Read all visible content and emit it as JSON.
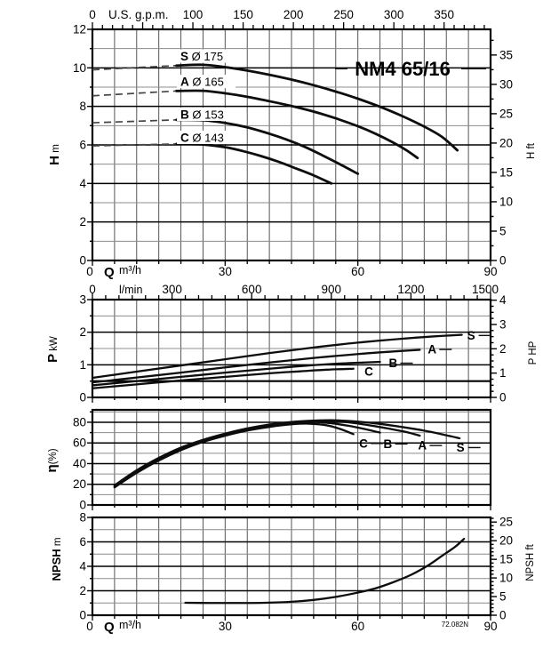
{
  "figure": {
    "title": "NM4 65/16",
    "note": "72.082N"
  },
  "chart_data": [
    {
      "id": "head_vs_flow",
      "type": "line",
      "title": "NM4 65/16",
      "x_top": {
        "label": "U.S. g.p.m.",
        "range": [
          0,
          396.26
        ],
        "labels": [
          0,
          100,
          150,
          200,
          250,
          300,
          350
        ],
        "minor_step": 10,
        "major_step": 50
      },
      "x_bottom": {
        "label": "Q",
        "unit": "m³/h",
        "range": [
          0,
          90
        ],
        "labels": [
          0,
          30,
          60,
          90
        ],
        "minor_step": 5
      },
      "y_left": {
        "label": "H",
        "unit": "m",
        "range": [
          0,
          12
        ],
        "labels": [
          0,
          2,
          4,
          6,
          8,
          10,
          12
        ],
        "minor_step": 1
      },
      "y_right": {
        "label": "H",
        "unit": "ft",
        "labels": [
          0,
          5,
          10,
          15,
          20,
          25,
          30,
          35
        ],
        "minor_step": 2.5,
        "units_per_left": 0.3048
      },
      "series": [
        {
          "name": "S",
          "impeller": "Ø 175",
          "label_box": {
            "q": 19.7,
            "v": 10.59
          },
          "dashed_lead": [
            [
              0,
              9.9
            ],
            [
              19,
              10.12
            ]
          ],
          "points": [
            [
              19,
              10.12
            ],
            [
              25,
              10.16
            ],
            [
              30,
              10.04
            ],
            [
              35,
              9.86
            ],
            [
              40,
              9.64
            ],
            [
              45,
              9.39
            ],
            [
              50,
              9.1
            ],
            [
              55,
              8.77
            ],
            [
              60,
              8.4
            ],
            [
              65,
              7.98
            ],
            [
              70,
              7.5
            ],
            [
              75,
              6.95
            ],
            [
              79,
              6.42
            ],
            [
              82.5,
              5.72
            ]
          ]
        },
        {
          "name": "A",
          "impeller": "Ø 165",
          "label_box": {
            "q": 19.7,
            "v": 9.27
          },
          "dashed_lead": [
            [
              0,
              8.55
            ],
            [
              19,
              8.8
            ]
          ],
          "points": [
            [
              19,
              8.8
            ],
            [
              25,
              8.81
            ],
            [
              30,
              8.68
            ],
            [
              35,
              8.5
            ],
            [
              40,
              8.27
            ],
            [
              45,
              8.02
            ],
            [
              50,
              7.73
            ],
            [
              55,
              7.38
            ],
            [
              60,
              6.97
            ],
            [
              64,
              6.58
            ],
            [
              68,
              6.12
            ],
            [
              71,
              5.72
            ],
            [
              73.5,
              5.32
            ]
          ]
        },
        {
          "name": "B",
          "impeller": "Ø 153",
          "label_box": {
            "q": 19.7,
            "v": 7.57
          },
          "dashed_lead": [
            [
              0,
              7.15
            ],
            [
              19,
              7.3
            ]
          ],
          "points": [
            [
              19,
              7.3
            ],
            [
              25,
              7.28
            ],
            [
              30,
              7.14
            ],
            [
              35,
              6.91
            ],
            [
              40,
              6.58
            ],
            [
              44,
              6.27
            ],
            [
              48,
              5.9
            ],
            [
              52,
              5.46
            ],
            [
              56,
              4.99
            ],
            [
              60,
              4.5
            ]
          ]
        },
        {
          "name": "C",
          "impeller": "Ø 143",
          "label_box": {
            "q": 19.7,
            "v": 6.37
          },
          "dashed_lead": [
            [
              0,
              5.95
            ],
            [
              19,
              6.05
            ]
          ],
          "points": [
            [
              19,
              6.05
            ],
            [
              25,
              6.02
            ],
            [
              30,
              5.88
            ],
            [
              34,
              5.68
            ],
            [
              38,
              5.43
            ],
            [
              42,
              5.13
            ],
            [
              46,
              4.78
            ],
            [
              50,
              4.42
            ],
            [
              54,
              4.0
            ]
          ]
        }
      ]
    },
    {
      "id": "power_vs_flow",
      "type": "line",
      "x_top": {
        "label": "l/min",
        "range": [
          0,
          1500
        ],
        "labels": [
          0,
          300,
          600,
          900,
          1200,
          1500
        ],
        "minor_step": 50,
        "major_step": 300
      },
      "y_left": {
        "label": "P",
        "unit": "kW",
        "range": [
          0,
          3
        ],
        "labels": [
          0,
          1,
          2,
          3
        ],
        "minor_step": 0.5,
        "emphasis": 0.5
      },
      "y_right": {
        "label": "P",
        "unit": "HP",
        "labels": [
          0,
          1,
          2,
          3,
          4
        ],
        "minor_step": 0.25,
        "units_per_left": 0.7457
      },
      "series": [
        {
          "name": "S",
          "end_label": {
            "q": 84.7,
            "v": 1.9,
            "dash": true
          },
          "points": [
            [
              0,
              0.6
            ],
            [
              10,
              0.79
            ],
            [
              20,
              0.98
            ],
            [
              30,
              1.17
            ],
            [
              40,
              1.36
            ],
            [
              50,
              1.53
            ],
            [
              60,
              1.68
            ],
            [
              70,
              1.8
            ],
            [
              77,
              1.87
            ],
            [
              83.5,
              1.92
            ]
          ]
        },
        {
          "name": "A",
          "end_label": {
            "q": 75.8,
            "v": 1.47,
            "dash": true
          },
          "points": [
            [
              0,
              0.46
            ],
            [
              10,
              0.61
            ],
            [
              20,
              0.76
            ],
            [
              30,
              0.92
            ],
            [
              40,
              1.07
            ],
            [
              50,
              1.21
            ],
            [
              60,
              1.33
            ],
            [
              67,
              1.4
            ],
            [
              74,
              1.46
            ]
          ]
        },
        {
          "name": "B",
          "end_label": {
            "q": 67,
            "v": 1.05,
            "dash": true
          },
          "points": [
            [
              0,
              0.37
            ],
            [
              10,
              0.5
            ],
            [
              20,
              0.63
            ],
            [
              30,
              0.76
            ],
            [
              40,
              0.88
            ],
            [
              48,
              0.97
            ],
            [
              56,
              1.04
            ],
            [
              65,
              1.09
            ]
          ]
        },
        {
          "name": "C",
          "end_label": {
            "q": 61.5,
            "v": 0.79,
            "dash": false
          },
          "points": [
            [
              0,
              0.28
            ],
            [
              10,
              0.4
            ],
            [
              20,
              0.52
            ],
            [
              30,
              0.63
            ],
            [
              40,
              0.74
            ],
            [
              47,
              0.8
            ],
            [
              53,
              0.85
            ],
            [
              59,
              0.88
            ]
          ]
        }
      ]
    },
    {
      "id": "efficiency_vs_flow",
      "type": "line",
      "y_left": {
        "label": "η",
        "unit": "(%)",
        "range": [
          0,
          92
        ],
        "labels": [
          0,
          20,
          40,
          60,
          80
        ],
        "minor_step": 10
      },
      "series": [
        {
          "name": "C",
          "end_label": {
            "q": 60.3,
            "v": 59.5,
            "dash": true
          },
          "points": [
            [
              5,
              17
            ],
            [
              10,
              31
            ],
            [
              15,
              43
            ],
            [
              20,
              53
            ],
            [
              25,
              61
            ],
            [
              30,
              67
            ],
            [
              35,
              72
            ],
            [
              40,
              75.5
            ],
            [
              45,
              78
            ],
            [
              49,
              78.6
            ],
            [
              53,
              77
            ],
            [
              56,
              73.5
            ],
            [
              59,
              68.5
            ]
          ]
        },
        {
          "name": "B",
          "end_label": {
            "q": 65.8,
            "v": 59,
            "dash": true
          },
          "points": [
            [
              5,
              17.5
            ],
            [
              10,
              31.5
            ],
            [
              15,
              43.5
            ],
            [
              20,
              53.5
            ],
            [
              25,
              61.5
            ],
            [
              30,
              67.5
            ],
            [
              35,
              72.5
            ],
            [
              40,
              76.5
            ],
            [
              45,
              79
            ],
            [
              50,
              80.3
            ],
            [
              54,
              79
            ],
            [
              58,
              76.5
            ],
            [
              62,
              73
            ],
            [
              65,
              70
            ]
          ]
        },
        {
          "name": "A",
          "end_label": {
            "q": 73.6,
            "v": 57.5,
            "dash": true
          },
          "points": [
            [
              5,
              18
            ],
            [
              10,
              32.5
            ],
            [
              15,
              44.5
            ],
            [
              20,
              54.5
            ],
            [
              25,
              62.5
            ],
            [
              30,
              68.5
            ],
            [
              35,
              73.5
            ],
            [
              40,
              77
            ],
            [
              45,
              79.8
            ],
            [
              50,
              81.3
            ],
            [
              55,
              81
            ],
            [
              59,
              79.3
            ],
            [
              63,
              76.8
            ],
            [
              67,
              73.8
            ],
            [
              71,
              70.5
            ],
            [
              74,
              67
            ]
          ]
        },
        {
          "name": "S",
          "end_label": {
            "q": 82.3,
            "v": 55.5,
            "dash": true
          },
          "points": [
            [
              5,
              19
            ],
            [
              10,
              33.5
            ],
            [
              15,
              45.5
            ],
            [
              20,
              55.5
            ],
            [
              25,
              63
            ],
            [
              30,
              69
            ],
            [
              35,
              74
            ],
            [
              40,
              77.8
            ],
            [
              45,
              80.3
            ],
            [
              50,
              81.6
            ],
            [
              55,
              81.9
            ],
            [
              60,
              80.6
            ],
            [
              65,
              78.4
            ],
            [
              70,
              75.4
            ],
            [
              75,
              71.9
            ],
            [
              79,
              68.4
            ],
            [
              83,
              64.5
            ]
          ]
        }
      ]
    },
    {
      "id": "npsh_vs_flow",
      "type": "line",
      "note": "72.082N",
      "x_bottom": {
        "label": "Q",
        "unit": "m³/h",
        "range": [
          0,
          90
        ],
        "labels": [
          0,
          30,
          60,
          90
        ],
        "minor_step": 5
      },
      "y_left": {
        "label": "NPSH",
        "unit": "m",
        "range": [
          0,
          8
        ],
        "labels": [
          0,
          2,
          4,
          6,
          8
        ],
        "minor_step": 1
      },
      "y_right": {
        "label": "NPSH",
        "unit": "ft",
        "labels": [
          0,
          5,
          10,
          15,
          20,
          25
        ],
        "minor_step": 1,
        "units_per_left": 0.3048
      },
      "series": [
        {
          "name": "NPSH",
          "points": [
            [
              21,
              1.02
            ],
            [
              27,
              1.0
            ],
            [
              33,
              1.0
            ],
            [
              39,
              1.02
            ],
            [
              45,
              1.1
            ],
            [
              50,
              1.25
            ],
            [
              55,
              1.5
            ],
            [
              60,
              1.85
            ],
            [
              64,
              2.2
            ],
            [
              68,
              2.7
            ],
            [
              72,
              3.3
            ],
            [
              76,
              4.1
            ],
            [
              79,
              4.85
            ],
            [
              82,
              5.6
            ],
            [
              84,
              6.25
            ]
          ]
        }
      ]
    }
  ]
}
